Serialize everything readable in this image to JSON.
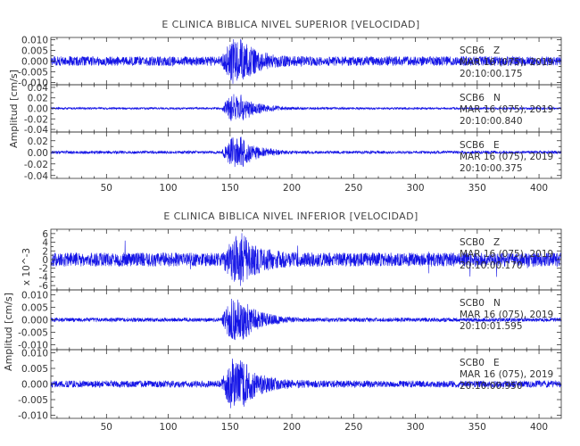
{
  "chart_data": [
    {
      "type": "line",
      "title": "E CLINICA BIBLICA NIVEL SUPERIOR [VELOCIDAD]",
      "ylabel": "Amplitud [cm/s]",
      "xlabel": "",
      "xlim": [
        5,
        418
      ],
      "x_ticks": [
        "50",
        "100",
        "150",
        "200",
        "250",
        "300",
        "350",
        "400"
      ],
      "x_tick_values": [
        50,
        100,
        150,
        200,
        250,
        300,
        350,
        400
      ],
      "panels": [
        {
          "station": "SCB6",
          "component": "Z",
          "date": "MAR 16 (075), 2019",
          "time": "20:10:00.175",
          "ylim": [
            -0.011,
            0.011
          ],
          "y_ticks": [
            "0.010",
            "0.005",
            "0.000",
            "-0.005",
            "-0.010"
          ],
          "y_tick_values": [
            0.01,
            0.005,
            0.0,
            -0.005,
            -0.01
          ],
          "noise_amplitude": 0.0022,
          "peak_amplitude": 0.011,
          "event_start": 143,
          "event_peak": 152
        },
        {
          "station": "SCB6",
          "component": "N",
          "date": "MAR 16 (075), 2019",
          "time": "20:10:00.840",
          "ylim": [
            -0.045,
            0.045
          ],
          "y_ticks": [
            "0.04",
            "0.02",
            "0.00",
            "-0.02",
            "-0.04"
          ],
          "y_tick_values": [
            0.04,
            0.02,
            0.0,
            -0.02,
            -0.04
          ],
          "noise_amplitude": 0.002,
          "peak_amplitude": 0.03,
          "event_start": 143,
          "event_peak": 152
        },
        {
          "station": "SCB6",
          "component": "E",
          "date": "MAR 16 (075), 2019",
          "time": "20:10:00.375",
          "ylim": [
            -0.045,
            0.035
          ],
          "y_ticks": [
            "0.02",
            "0.00",
            "-0.02",
            "-0.04"
          ],
          "y_tick_values": [
            0.02,
            0.0,
            -0.02,
            -0.04
          ],
          "noise_amplitude": 0.0025,
          "peak_amplitude": 0.03,
          "event_start": 143,
          "event_peak": 152
        }
      ]
    },
    {
      "type": "line",
      "title": "E CLINICA BIBLICA NIVEL INFERIOR [VELOCIDAD]",
      "ylabel": "Amplitud [cm/s]",
      "xlabel": "",
      "xlim": [
        5,
        418
      ],
      "x_ticks": [
        "50",
        "100",
        "150",
        "200",
        "250",
        "300",
        "350",
        "400"
      ],
      "x_tick_values": [
        50,
        100,
        150,
        200,
        250,
        300,
        350,
        400
      ],
      "panels": [
        {
          "station": "SCB0",
          "component": "Z",
          "date": "MAR 16 (075), 2019",
          "time": "20:10:00.170",
          "scale_label": "x 10^-3",
          "ylim": [
            -7,
            7
          ],
          "y_ticks": [
            "6",
            "4",
            "2",
            "0",
            "-2",
            "-4",
            "-6"
          ],
          "y_tick_values": [
            6,
            4,
            2,
            0,
            -2,
            -4,
            -6
          ],
          "noise_amplitude": 1.6,
          "peak_amplitude": 6.5,
          "event_start": 143,
          "event_peak": 152
        },
        {
          "station": "SCB0",
          "component": "N",
          "date": "MAR 16 (075), 2019",
          "time": "20:10:01.595",
          "ylim": [
            -0.012,
            0.012
          ],
          "y_ticks": [
            "0.010",
            "0.005",
            "0.000",
            "-0.005",
            "-0.010"
          ],
          "y_tick_values": [
            0.01,
            0.005,
            0.0,
            -0.005,
            -0.01
          ],
          "noise_amplitude": 0.0008,
          "peak_amplitude": 0.011,
          "event_start": 143,
          "event_peak": 152
        },
        {
          "station": "SCB0",
          "component": "E",
          "date": "MAR 16 (075), 2019",
          "time": "20:10:00.950",
          "ylim": [
            -0.011,
            0.011
          ],
          "y_ticks": [
            "0.010",
            "0.005",
            "0.000",
            "-0.005",
            "-0.010"
          ],
          "y_tick_values": [
            0.01,
            0.005,
            0.0,
            -0.005,
            -0.01
          ],
          "noise_amplitude": 0.0011,
          "peak_amplitude": 0.0095,
          "event_start": 143,
          "event_peak": 152
        }
      ]
    }
  ],
  "colors": {
    "trace": "#1414e6",
    "axis": "#333333",
    "background": "#ffffff"
  }
}
